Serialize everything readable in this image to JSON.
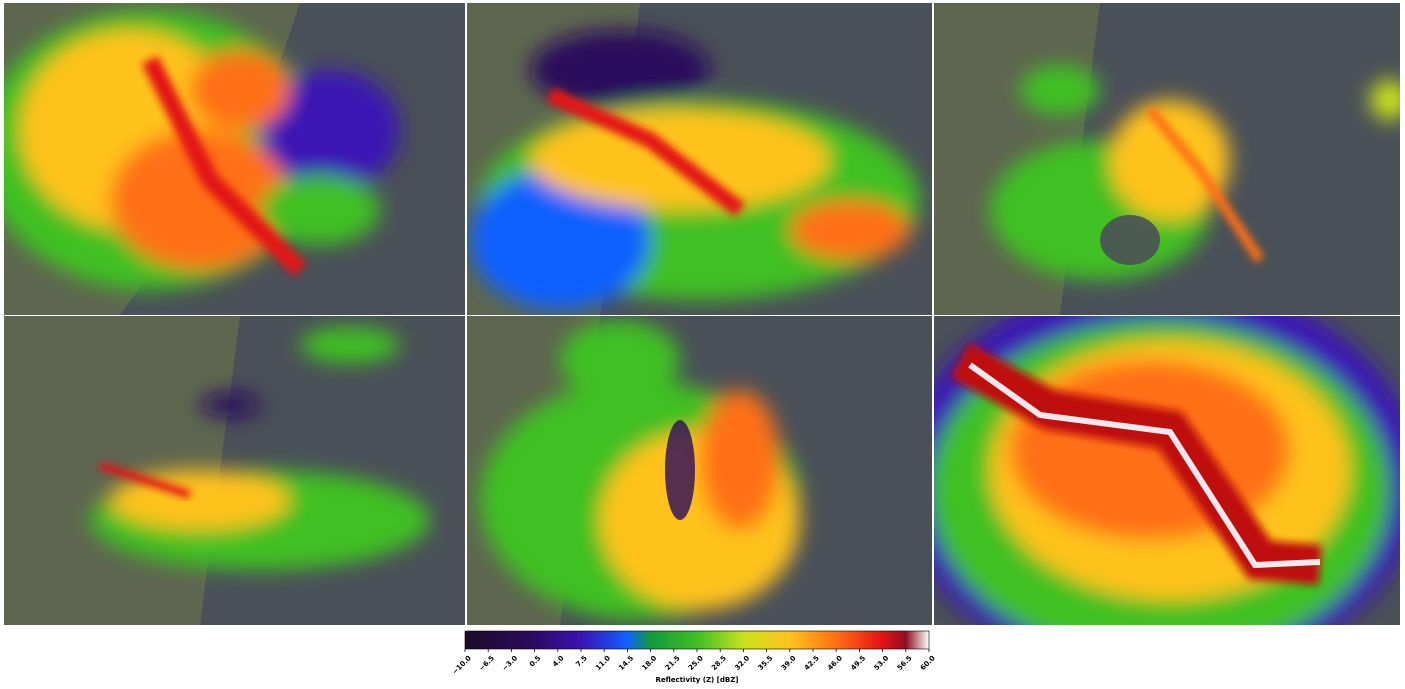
{
  "colorbar": {
    "label": "Reflectivity (Z) [dBZ]",
    "lim": [
      -10,
      60
    ],
    "ticks": [
      {
        "value": -10,
        "label": "−10.0"
      },
      {
        "value": -6.5,
        "label": "−6.5"
      },
      {
        "value": -3,
        "label": "−3.0"
      },
      0.5,
      {
        "value": 4,
        "label": "4.0"
      },
      7.5,
      {
        "value": 11,
        "label": "11.0"
      },
      14.5,
      {
        "value": 18,
        "label": "18.0"
      },
      21.5,
      {
        "value": 25,
        "label": "25.0"
      },
      28.5,
      {
        "value": 32,
        "label": "32.0"
      },
      35.5,
      {
        "value": 39,
        "label": "39.0"
      },
      42.5,
      {
        "value": 46,
        "label": "46.0"
      },
      49.5,
      {
        "value": 53,
        "label": "53.0"
      },
      56.5,
      {
        "value": 60,
        "label": "60.0"
      }
    ],
    "colormap": [
      {
        "value": -10,
        "color": "#1c0b2b"
      },
      {
        "value": 0,
        "color": "#2b0b5c"
      },
      {
        "value": 7.5,
        "color": "#3a12b4"
      },
      {
        "value": 14.5,
        "color": "#1060ff"
      },
      {
        "value": 18,
        "color": "#139a3c"
      },
      {
        "value": 25,
        "color": "#3fc022"
      },
      {
        "value": 32,
        "color": "#c9e21f"
      },
      {
        "value": 39,
        "color": "#ffc21f"
      },
      {
        "value": 46,
        "color": "#ff7012"
      },
      {
        "value": 53,
        "color": "#e31212"
      },
      {
        "value": 56.5,
        "color": "#8e1020"
      },
      {
        "value": 60,
        "color": "#ffffff"
      }
    ]
  }
}
